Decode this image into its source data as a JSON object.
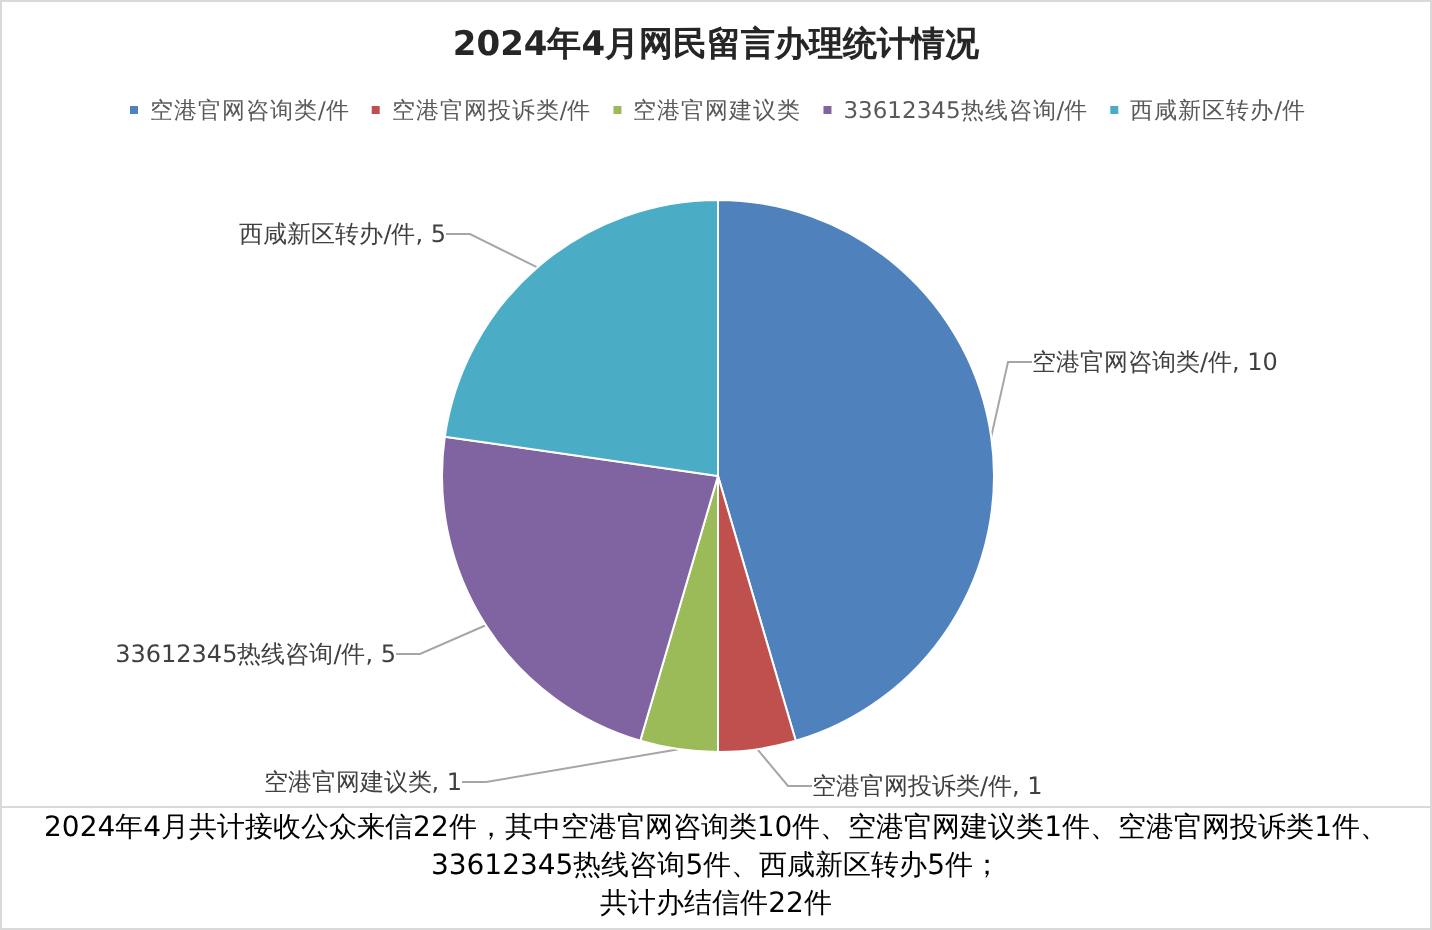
{
  "chart_data": {
    "type": "pie",
    "title": "2024年4月网民留言办理统计情况",
    "categories": [
      "空港官网咨询类/件",
      "空港官网投诉类/件",
      "空港官网建议类",
      "33612345热线咨询/件",
      "西咸新区转办/件"
    ],
    "values": [
      10,
      1,
      1,
      5,
      5
    ],
    "value_labels": [
      ", 10",
      ", 1",
      ", 1",
      ", 5",
      ", 5"
    ],
    "colors": [
      "#4f81bd",
      "#c0504d",
      "#9bbb59",
      "#8064a2",
      "#4bacc6"
    ],
    "legend": "top",
    "annotations": [
      "2024年4月共计接收公众来信22件，其中空港官网咨询类10件、空港官网建议类1件、空港官网投诉类1件、33612345热线咨询5件、西咸新区转办5件；",
      "共计办结信件22件"
    ]
  }
}
